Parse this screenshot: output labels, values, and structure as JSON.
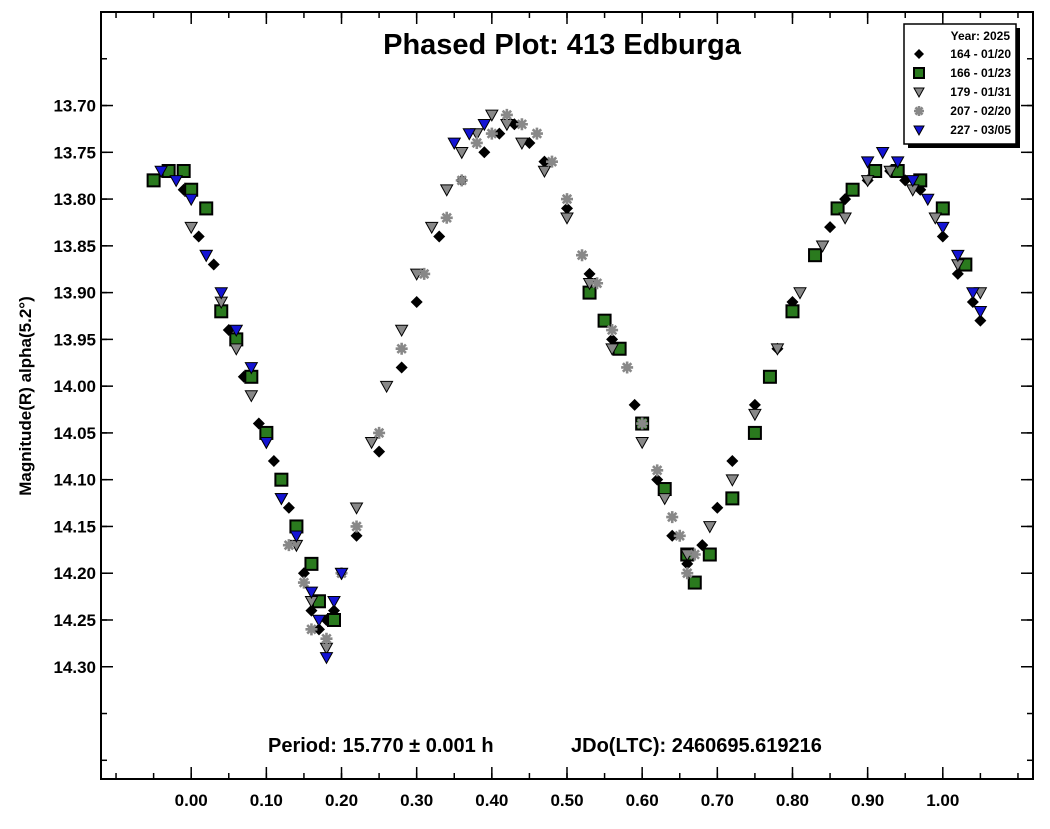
{
  "chart_data": {
    "type": "scatter",
    "title": "Phased Plot: 413 Edburga",
    "xlabel": "",
    "ylabel": "Magnitude(R) alpha(5.2°)",
    "xlim": [
      -0.12,
      1.12
    ],
    "ylim": [
      13.6,
      14.42
    ],
    "y_inverted": true,
    "x_ticks": [
      "0.00",
      "0.10",
      "0.20",
      "0.30",
      "0.40",
      "0.50",
      "0.60",
      "0.70",
      "0.80",
      "0.90",
      "1.00"
    ],
    "y_ticks": [
      "13.70",
      "13.75",
      "13.80",
      "13.85",
      "13.90",
      "13.95",
      "14.00",
      "14.05",
      "14.10",
      "14.15",
      "14.20",
      "14.25",
      "14.30"
    ],
    "grid": false,
    "legend_position": "top-right",
    "legend_title": "Year: 2025",
    "footer": {
      "period": "Period: 15.770 ± 0.001 h",
      "epoch": "JDo(LTC): 2460695.619216"
    },
    "series": [
      {
        "name": "164 - 01/20",
        "marker": "diamond",
        "color": "#000000",
        "x": [
          -0.01,
          0.01,
          0.03,
          0.05,
          0.07,
          0.09,
          0.11,
          0.13,
          0.15,
          0.16,
          0.17,
          0.18,
          0.19,
          0.2,
          0.22,
          0.25,
          0.28,
          0.3,
          0.33,
          0.36,
          0.39,
          0.41,
          0.43,
          0.45,
          0.47,
          0.5,
          0.53,
          0.56,
          0.59,
          0.62,
          0.64,
          0.66,
          0.68,
          0.7,
          0.72,
          0.75,
          0.78,
          0.8,
          0.83,
          0.85,
          0.87,
          0.9,
          0.93,
          0.95,
          0.97,
          1.0,
          1.02,
          1.04,
          1.05
        ],
        "y": [
          13.79,
          13.84,
          13.87,
          13.94,
          13.99,
          14.04,
          14.08,
          14.13,
          14.2,
          14.24,
          14.26,
          14.25,
          14.24,
          14.2,
          14.16,
          14.07,
          13.98,
          13.91,
          13.84,
          13.78,
          13.75,
          13.73,
          13.72,
          13.74,
          13.76,
          13.81,
          13.88,
          13.95,
          14.02,
          14.1,
          14.16,
          14.19,
          14.17,
          14.13,
          14.08,
          14.02,
          13.96,
          13.91,
          13.86,
          13.83,
          13.8,
          13.78,
          13.77,
          13.78,
          13.79,
          13.84,
          13.88,
          13.91,
          13.93
        ]
      },
      {
        "name": "166 - 01/23",
        "marker": "square",
        "color": "#2a7a1e",
        "x": [
          -0.05,
          -0.03,
          -0.01,
          0.0,
          0.02,
          0.04,
          0.06,
          0.08,
          0.1,
          0.12,
          0.14,
          0.16,
          0.17,
          0.19,
          0.53,
          0.55,
          0.57,
          0.6,
          0.63,
          0.66,
          0.67,
          0.69,
          0.72,
          0.75,
          0.77,
          0.8,
          0.83,
          0.86,
          0.88,
          0.91,
          0.94,
          0.97,
          1.0,
          1.03
        ],
        "y": [
          13.78,
          13.77,
          13.77,
          13.79,
          13.81,
          13.92,
          13.95,
          13.99,
          14.05,
          14.1,
          14.15,
          14.19,
          14.23,
          14.25,
          13.9,
          13.93,
          13.96,
          14.04,
          14.11,
          14.18,
          14.21,
          14.18,
          14.12,
          14.05,
          13.99,
          13.92,
          13.86,
          13.81,
          13.79,
          13.77,
          13.77,
          13.78,
          13.81,
          13.87
        ]
      },
      {
        "name": "179 - 01/31",
        "marker": "triangle-down",
        "color": "#888888",
        "x": [
          0.0,
          0.02,
          0.04,
          0.06,
          0.08,
          0.1,
          0.12,
          0.14,
          0.16,
          0.18,
          0.2,
          0.22,
          0.24,
          0.26,
          0.28,
          0.3,
          0.32,
          0.34,
          0.36,
          0.38,
          0.4,
          0.42,
          0.44,
          0.47,
          0.5,
          0.53,
          0.56,
          0.6,
          0.63,
          0.66,
          0.69,
          0.72,
          0.75,
          0.78,
          0.81,
          0.84,
          0.87,
          0.9,
          0.93,
          0.96,
          0.99,
          1.02,
          1.05
        ],
        "y": [
          13.83,
          13.86,
          13.91,
          13.96,
          14.01,
          14.06,
          14.12,
          14.17,
          14.23,
          14.28,
          14.2,
          14.13,
          14.06,
          14.0,
          13.94,
          13.88,
          13.83,
          13.79,
          13.75,
          13.73,
          13.71,
          13.72,
          13.74,
          13.77,
          13.82,
          13.89,
          13.96,
          14.06,
          14.12,
          14.18,
          14.15,
          14.1,
          14.03,
          13.96,
          13.9,
          13.85,
          13.82,
          13.78,
          13.77,
          13.79,
          13.82,
          13.87,
          13.9
        ]
      },
      {
        "name": "207 - 02/20",
        "marker": "asterisk",
        "color": "#888888",
        "x": [
          0.13,
          0.15,
          0.16,
          0.18,
          0.2,
          0.22,
          0.25,
          0.28,
          0.31,
          0.34,
          0.36,
          0.38,
          0.4,
          0.42,
          0.44,
          0.46,
          0.48,
          0.5,
          0.52,
          0.54,
          0.56,
          0.58,
          0.6,
          0.62,
          0.64,
          0.65,
          0.66,
          0.67
        ],
        "y": [
          14.17,
          14.21,
          14.26,
          14.27,
          14.2,
          14.15,
          14.05,
          13.96,
          13.88,
          13.82,
          13.78,
          13.74,
          13.73,
          13.71,
          13.72,
          13.73,
          13.76,
          13.8,
          13.86,
          13.89,
          13.94,
          13.98,
          14.04,
          14.09,
          14.14,
          14.16,
          14.2,
          14.18
        ]
      },
      {
        "name": "227 - 03/05",
        "marker": "triangle-down",
        "color": "#1414d4",
        "x": [
          -0.04,
          -0.02,
          0.0,
          0.02,
          0.04,
          0.06,
          0.08,
          0.1,
          0.12,
          0.14,
          0.16,
          0.17,
          0.18,
          0.19,
          0.2,
          0.35,
          0.37,
          0.39,
          0.9,
          0.92,
          0.94,
          0.96,
          0.98,
          1.0,
          1.02,
          1.04,
          1.05
        ],
        "y": [
          13.77,
          13.78,
          13.8,
          13.86,
          13.9,
          13.94,
          13.98,
          14.06,
          14.12,
          14.16,
          14.22,
          14.25,
          14.29,
          14.23,
          14.2,
          13.74,
          13.73,
          13.72,
          13.76,
          13.75,
          13.76,
          13.78,
          13.8,
          13.83,
          13.86,
          13.9,
          13.92
        ]
      }
    ]
  }
}
